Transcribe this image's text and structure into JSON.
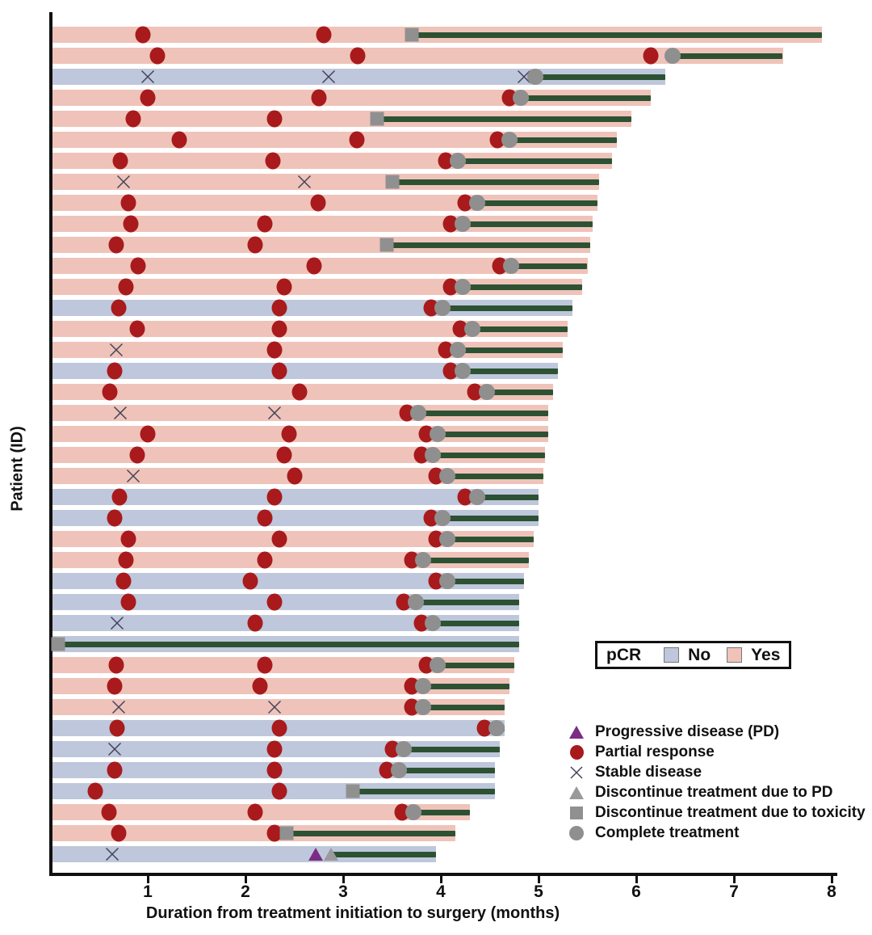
{
  "chart_data": {
    "type": "bar",
    "subtype": "swimmer-plot",
    "xlabel": "Duration from treatment initiation to surgery (months)",
    "ylabel": "Patient (ID)",
    "xlim": [
      0,
      8
    ],
    "xticks": [
      "1",
      "2",
      "3",
      "4",
      "5",
      "6",
      "7",
      "8"
    ],
    "grid": false,
    "colors": {
      "pcr_yes_bar": "#efc3b9",
      "pcr_no_bar": "#bec7db",
      "treatment_line": "#2d5233",
      "partial_response": "#a91a1c",
      "gray_marker": "#8f8f8f",
      "progressive_disease": "#7b2c85",
      "axis": "#111111"
    },
    "pcr_legend": {
      "title": "pCR",
      "no_label": "No",
      "yes_label": "Yes"
    },
    "marker_legend": [
      {
        "marker": "progressive-disease-triangle",
        "label": "Progressive disease (PD)"
      },
      {
        "marker": "partial-response-circle",
        "label": "Partial response"
      },
      {
        "marker": "stable-disease-x",
        "label": "Stable disease"
      },
      {
        "marker": "discontinue-pd-triangle",
        "label": "Discontinue treatment due to PD"
      },
      {
        "marker": "discontinue-toxicity-square",
        "label": "Discontinue treatment due to toxicity"
      },
      {
        "marker": "complete-treatment-circle",
        "label": "Complete treatment"
      }
    ],
    "event_types": {
      "pr": "Partial response",
      "sd": "Stable disease",
      "pd": "Progressive disease (PD)",
      "dpd": "Discontinue treatment due to PD",
      "tox": "Discontinue treatment due to toxicity",
      "comp": "Complete treatment"
    },
    "patients": [
      {
        "pcr": "Yes",
        "end": 7.9,
        "events": [
          {
            "t": "pr",
            "x": 0.95
          },
          {
            "t": "pr",
            "x": 2.8
          },
          {
            "t": "tox",
            "x": 3.7
          }
        ]
      },
      {
        "pcr": "Yes",
        "end": 7.5,
        "events": [
          {
            "t": "pr",
            "x": 1.1
          },
          {
            "t": "pr",
            "x": 3.15
          },
          {
            "t": "pr",
            "x": 6.15
          },
          {
            "t": "comp",
            "x": 6.37
          }
        ]
      },
      {
        "pcr": "No",
        "end": 6.3,
        "events": [
          {
            "t": "sd",
            "x": 1.0
          },
          {
            "t": "sd",
            "x": 2.85
          },
          {
            "t": "sd",
            "x": 4.85
          },
          {
            "t": "comp",
            "x": 4.97
          }
        ]
      },
      {
        "pcr": "Yes",
        "end": 6.15,
        "events": [
          {
            "t": "pr",
            "x": 1.0
          },
          {
            "t": "pr",
            "x": 2.75
          },
          {
            "t": "pr",
            "x": 4.7
          },
          {
            "t": "comp",
            "x": 4.82
          }
        ]
      },
      {
        "pcr": "Yes",
        "end": 5.95,
        "events": [
          {
            "t": "pr",
            "x": 0.85
          },
          {
            "t": "pr",
            "x": 2.3
          },
          {
            "t": "tox",
            "x": 3.35
          }
        ]
      },
      {
        "pcr": "Yes",
        "end": 5.8,
        "events": [
          {
            "t": "pr",
            "x": 1.32
          },
          {
            "t": "pr",
            "x": 3.14
          },
          {
            "t": "pr",
            "x": 4.58
          },
          {
            "t": "comp",
            "x": 4.7
          }
        ]
      },
      {
        "pcr": "Yes",
        "end": 5.75,
        "events": [
          {
            "t": "pr",
            "x": 0.72
          },
          {
            "t": "pr",
            "x": 2.28
          },
          {
            "t": "pr",
            "x": 4.05
          },
          {
            "t": "comp",
            "x": 4.17
          }
        ]
      },
      {
        "pcr": "Yes",
        "end": 5.62,
        "events": [
          {
            "t": "sd",
            "x": 0.75
          },
          {
            "t": "sd",
            "x": 2.6
          },
          {
            "t": "tox",
            "x": 3.5
          }
        ]
      },
      {
        "pcr": "Yes",
        "end": 5.6,
        "events": [
          {
            "t": "pr",
            "x": 0.8
          },
          {
            "t": "pr",
            "x": 2.74
          },
          {
            "t": "pr",
            "x": 4.25
          },
          {
            "t": "comp",
            "x": 4.37
          }
        ]
      },
      {
        "pcr": "Yes",
        "end": 5.55,
        "events": [
          {
            "t": "pr",
            "x": 0.83
          },
          {
            "t": "pr",
            "x": 2.2
          },
          {
            "t": "pr",
            "x": 4.1
          },
          {
            "t": "comp",
            "x": 4.22
          }
        ]
      },
      {
        "pcr": "Yes",
        "end": 5.53,
        "events": [
          {
            "t": "pr",
            "x": 0.68
          },
          {
            "t": "pr",
            "x": 2.1
          },
          {
            "t": "tox",
            "x": 3.45
          }
        ]
      },
      {
        "pcr": "Yes",
        "end": 5.5,
        "events": [
          {
            "t": "pr",
            "x": 0.9
          },
          {
            "t": "pr",
            "x": 2.7
          },
          {
            "t": "pr",
            "x": 4.6
          },
          {
            "t": "comp",
            "x": 4.72
          }
        ]
      },
      {
        "pcr": "Yes",
        "end": 5.45,
        "events": [
          {
            "t": "pr",
            "x": 0.78
          },
          {
            "t": "pr",
            "x": 2.4
          },
          {
            "t": "pr",
            "x": 4.1
          },
          {
            "t": "comp",
            "x": 4.22
          }
        ]
      },
      {
        "pcr": "No",
        "end": 5.35,
        "events": [
          {
            "t": "pr",
            "x": 0.7
          },
          {
            "t": "pr",
            "x": 2.35
          },
          {
            "t": "pr",
            "x": 3.9
          },
          {
            "t": "comp",
            "x": 4.02
          }
        ]
      },
      {
        "pcr": "Yes",
        "end": 5.3,
        "events": [
          {
            "t": "pr",
            "x": 0.89
          },
          {
            "t": "pr",
            "x": 2.35
          },
          {
            "t": "pr",
            "x": 4.2
          },
          {
            "t": "comp",
            "x": 4.32
          }
        ]
      },
      {
        "pcr": "Yes",
        "end": 5.25,
        "events": [
          {
            "t": "sd",
            "x": 0.68
          },
          {
            "t": "pr",
            "x": 2.3
          },
          {
            "t": "pr",
            "x": 4.05
          },
          {
            "t": "comp",
            "x": 4.17
          }
        ]
      },
      {
        "pcr": "No",
        "end": 5.2,
        "events": [
          {
            "t": "pr",
            "x": 0.66
          },
          {
            "t": "pr",
            "x": 2.35
          },
          {
            "t": "pr",
            "x": 4.1
          },
          {
            "t": "comp",
            "x": 4.22
          }
        ]
      },
      {
        "pcr": "Yes",
        "end": 5.15,
        "events": [
          {
            "t": "pr",
            "x": 0.61
          },
          {
            "t": "pr",
            "x": 2.55
          },
          {
            "t": "pr",
            "x": 4.35
          },
          {
            "t": "comp",
            "x": 4.47
          }
        ]
      },
      {
        "pcr": "Yes",
        "end": 5.1,
        "events": [
          {
            "t": "sd",
            "x": 0.72
          },
          {
            "t": "sd",
            "x": 2.3
          },
          {
            "t": "pr",
            "x": 3.65
          },
          {
            "t": "comp",
            "x": 3.77
          }
        ]
      },
      {
        "pcr": "Yes",
        "end": 5.1,
        "events": [
          {
            "t": "pr",
            "x": 1.0
          },
          {
            "t": "pr",
            "x": 2.45
          },
          {
            "t": "pr",
            "x": 3.85
          },
          {
            "t": "comp",
            "x": 3.97
          }
        ]
      },
      {
        "pcr": "Yes",
        "end": 5.07,
        "events": [
          {
            "t": "pr",
            "x": 0.89
          },
          {
            "t": "pr",
            "x": 2.4
          },
          {
            "t": "pr",
            "x": 3.8
          },
          {
            "t": "comp",
            "x": 3.92
          }
        ]
      },
      {
        "pcr": "Yes",
        "end": 5.05,
        "events": [
          {
            "t": "sd",
            "x": 0.85
          },
          {
            "t": "pr",
            "x": 2.5
          },
          {
            "t": "pr",
            "x": 3.95
          },
          {
            "t": "comp",
            "x": 4.07
          }
        ]
      },
      {
        "pcr": "No",
        "end": 5.0,
        "events": [
          {
            "t": "pr",
            "x": 0.71
          },
          {
            "t": "pr",
            "x": 2.3
          },
          {
            "t": "pr",
            "x": 4.25
          },
          {
            "t": "comp",
            "x": 4.37
          }
        ]
      },
      {
        "pcr": "No",
        "end": 5.0,
        "events": [
          {
            "t": "pr",
            "x": 0.66
          },
          {
            "t": "pr",
            "x": 2.2
          },
          {
            "t": "pr",
            "x": 3.9
          },
          {
            "t": "comp",
            "x": 4.02
          }
        ]
      },
      {
        "pcr": "Yes",
        "end": 4.95,
        "events": [
          {
            "t": "pr",
            "x": 0.8
          },
          {
            "t": "pr",
            "x": 2.35
          },
          {
            "t": "pr",
            "x": 3.95
          },
          {
            "t": "comp",
            "x": 4.07
          }
        ]
      },
      {
        "pcr": "Yes",
        "end": 4.9,
        "events": [
          {
            "t": "pr",
            "x": 0.78
          },
          {
            "t": "pr",
            "x": 2.2
          },
          {
            "t": "pr",
            "x": 3.7
          },
          {
            "t": "comp",
            "x": 3.82
          }
        ]
      },
      {
        "pcr": "No",
        "end": 4.85,
        "events": [
          {
            "t": "pr",
            "x": 0.75
          },
          {
            "t": "pr",
            "x": 2.05
          },
          {
            "t": "pr",
            "x": 3.95
          },
          {
            "t": "comp",
            "x": 4.07
          }
        ]
      },
      {
        "pcr": "No",
        "end": 4.8,
        "events": [
          {
            "t": "pr",
            "x": 0.8
          },
          {
            "t": "pr",
            "x": 2.3
          },
          {
            "t": "pr",
            "x": 3.62
          },
          {
            "t": "comp",
            "x": 3.74
          }
        ]
      },
      {
        "pcr": "No",
        "end": 4.8,
        "events": [
          {
            "t": "sd",
            "x": 0.69
          },
          {
            "t": "pr",
            "x": 2.1
          },
          {
            "t": "pr",
            "x": 3.8
          },
          {
            "t": "comp",
            "x": 3.92
          }
        ]
      },
      {
        "pcr": "No",
        "end": 4.8,
        "events": [
          {
            "t": "tox",
            "x": 0.08
          }
        ]
      },
      {
        "pcr": "Yes",
        "end": 4.75,
        "events": [
          {
            "t": "pr",
            "x": 0.68
          },
          {
            "t": "pr",
            "x": 2.2
          },
          {
            "t": "pr",
            "x": 3.85
          },
          {
            "t": "comp",
            "x": 3.97
          }
        ]
      },
      {
        "pcr": "Yes",
        "end": 4.7,
        "events": [
          {
            "t": "pr",
            "x": 0.66
          },
          {
            "t": "pr",
            "x": 2.15
          },
          {
            "t": "pr",
            "x": 3.7
          },
          {
            "t": "comp",
            "x": 3.82
          }
        ]
      },
      {
        "pcr": "Yes",
        "end": 4.65,
        "events": [
          {
            "t": "sd",
            "x": 0.7
          },
          {
            "t": "sd",
            "x": 2.3
          },
          {
            "t": "pr",
            "x": 3.7
          },
          {
            "t": "comp",
            "x": 3.82
          }
        ]
      },
      {
        "pcr": "No",
        "end": 4.65,
        "events": [
          {
            "t": "pr",
            "x": 0.69
          },
          {
            "t": "pr",
            "x": 2.35
          },
          {
            "t": "pr",
            "x": 4.45
          },
          {
            "t": "comp",
            "x": 4.57
          }
        ]
      },
      {
        "pcr": "No",
        "end": 4.6,
        "events": [
          {
            "t": "sd",
            "x": 0.66
          },
          {
            "t": "pr",
            "x": 2.3
          },
          {
            "t": "pr",
            "x": 3.5
          },
          {
            "t": "comp",
            "x": 3.62
          }
        ]
      },
      {
        "pcr": "No",
        "end": 4.55,
        "events": [
          {
            "t": "pr",
            "x": 0.66
          },
          {
            "t": "pr",
            "x": 2.3
          },
          {
            "t": "pr",
            "x": 3.45
          },
          {
            "t": "comp",
            "x": 3.57
          }
        ]
      },
      {
        "pcr": "No",
        "end": 4.55,
        "events": [
          {
            "t": "pr",
            "x": 0.46
          },
          {
            "t": "pr",
            "x": 2.35
          },
          {
            "t": "tox",
            "x": 3.1
          }
        ]
      },
      {
        "pcr": "Yes",
        "end": 4.3,
        "events": [
          {
            "t": "pr",
            "x": 0.6
          },
          {
            "t": "pr",
            "x": 2.1
          },
          {
            "t": "pr",
            "x": 3.6
          },
          {
            "t": "comp",
            "x": 3.72
          }
        ]
      },
      {
        "pcr": "Yes",
        "end": 4.15,
        "events": [
          {
            "t": "pr",
            "x": 0.7
          },
          {
            "t": "pr",
            "x": 2.3
          },
          {
            "t": "tox",
            "x": 2.42
          }
        ]
      },
      {
        "pcr": "No",
        "end": 3.95,
        "events": [
          {
            "t": "sd",
            "x": 0.64
          },
          {
            "t": "pd",
            "x": 2.72
          },
          {
            "t": "dpd",
            "x": 2.88
          }
        ]
      }
    ]
  }
}
